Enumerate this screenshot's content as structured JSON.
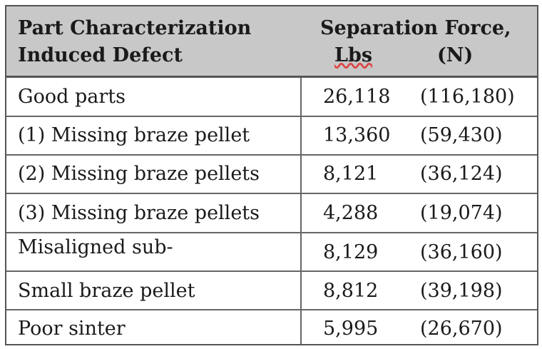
{
  "header": {
    "col1_line1": "Part Characterization",
    "col1_line2": "Induced Defect",
    "col2_line1": "Separation Force,",
    "col2_lbs": "Lbs",
    "col2_n": "(N)"
  },
  "rows": [
    {
      "label": "Good parts",
      "lbs": "26,118",
      "n": "(116,180)"
    },
    {
      "label": "(1) Missing braze pellet",
      "lbs": "13,360",
      "n": "(59,430)"
    },
    {
      "label": "(2) Missing braze pellets",
      "lbs": "8,121",
      "n": "(36,124)"
    },
    {
      "label": "(3) Missing braze pellets",
      "lbs": "4,288",
      "n": "(19,074)"
    },
    {
      "label": "Misaligned sub-",
      "lbs": "8,129",
      "n": "(36,160)"
    },
    {
      "label": "Small braze pellet",
      "lbs": "8,812",
      "n": "(39,198)"
    },
    {
      "label": "Poor sinter",
      "lbs": "5,995",
      "n": "(26,670)"
    }
  ]
}
